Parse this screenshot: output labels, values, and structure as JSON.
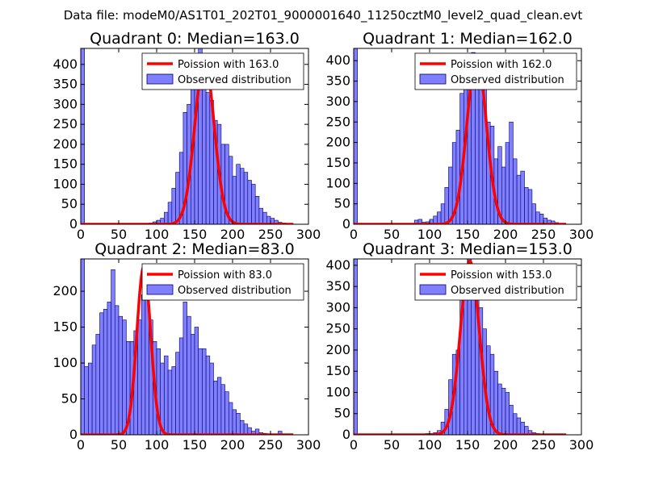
{
  "suptitle": "Data file: modeM0/AS1T01_202T01_9000001640_11250cztM0_level2_quad_clean.evt",
  "colors": {
    "bar_fill": "#7f7fff",
    "bar_edge": "#000066",
    "curve": "#ff0000",
    "axis": "#000000"
  },
  "chart_data": [
    {
      "type": "bar",
      "title": "Quadrant 0: Median=163.0",
      "xlim": [
        0,
        300
      ],
      "ylim": [
        0,
        440
      ],
      "xticks": [
        0,
        50,
        100,
        150,
        200,
        250,
        300
      ],
      "yticks": [
        0,
        50,
        100,
        150,
        200,
        250,
        300,
        350,
        400
      ],
      "legend": {
        "position": "upper-right",
        "line_label": "Poission with 163.0",
        "bar_label": "Observed distribution"
      },
      "bin_width": 5,
      "bins": [
        [
          0,
          440
        ],
        [
          85,
          2
        ],
        [
          90,
          3
        ],
        [
          95,
          6
        ],
        [
          100,
          10
        ],
        [
          105,
          15
        ],
        [
          110,
          30
        ],
        [
          115,
          55
        ],
        [
          120,
          90
        ],
        [
          125,
          130
        ],
        [
          130,
          180
        ],
        [
          135,
          280
        ],
        [
          140,
          300
        ],
        [
          145,
          420
        ],
        [
          150,
          380
        ],
        [
          155,
          440
        ],
        [
          160,
          400
        ],
        [
          165,
          330
        ],
        [
          170,
          310
        ],
        [
          175,
          260
        ],
        [
          180,
          250
        ],
        [
          185,
          200
        ],
        [
          190,
          200
        ],
        [
          195,
          170
        ],
        [
          200,
          120
        ],
        [
          205,
          150
        ],
        [
          210,
          140
        ],
        [
          215,
          130
        ],
        [
          220,
          110
        ],
        [
          225,
          100
        ],
        [
          230,
          70
        ],
        [
          235,
          40
        ],
        [
          240,
          30
        ],
        [
          245,
          20
        ],
        [
          250,
          15
        ],
        [
          255,
          10
        ],
        [
          260,
          5
        ],
        [
          265,
          3
        ],
        [
          270,
          2
        ],
        [
          275,
          1
        ]
      ],
      "poisson_mean": 163.0,
      "poisson_peak": 410
    },
    {
      "type": "bar",
      "title": "Quadrant 1: Median=162.0",
      "xlim": [
        0,
        300
      ],
      "ylim": [
        0,
        430
      ],
      "xticks": [
        0,
        50,
        100,
        150,
        200,
        250,
        300
      ],
      "yticks": [
        0,
        50,
        100,
        150,
        200,
        250,
        300,
        350,
        400
      ],
      "legend": {
        "position": "upper-right",
        "line_label": "Poission with 162.0",
        "bar_label": "Observed distribution"
      },
      "bin_width": 5,
      "bins": [
        [
          0,
          430
        ],
        [
          80,
          10
        ],
        [
          85,
          12
        ],
        [
          90,
          5
        ],
        [
          95,
          6
        ],
        [
          100,
          12
        ],
        [
          105,
          20
        ],
        [
          110,
          30
        ],
        [
          115,
          50
        ],
        [
          120,
          90
        ],
        [
          125,
          140
        ],
        [
          130,
          200
        ],
        [
          135,
          230
        ],
        [
          140,
          320
        ],
        [
          145,
          380
        ],
        [
          150,
          360
        ],
        [
          155,
          420
        ],
        [
          160,
          390
        ],
        [
          165,
          340
        ],
        [
          170,
          330
        ],
        [
          175,
          250
        ],
        [
          180,
          240
        ],
        [
          185,
          160
        ],
        [
          190,
          190
        ],
        [
          195,
          140
        ],
        [
          200,
          200
        ],
        [
          205,
          250
        ],
        [
          210,
          160
        ],
        [
          215,
          120
        ],
        [
          220,
          130
        ],
        [
          225,
          90
        ],
        [
          230,
          85
        ],
        [
          235,
          50
        ],
        [
          240,
          30
        ],
        [
          245,
          25
        ],
        [
          250,
          15
        ],
        [
          255,
          10
        ],
        [
          260,
          8
        ],
        [
          265,
          4
        ],
        [
          270,
          2
        ]
      ],
      "poisson_mean": 162.0,
      "poisson_peak": 410
    },
    {
      "type": "bar",
      "title": "Quadrant 2: Median=83.0",
      "xlim": [
        0,
        300
      ],
      "ylim": [
        0,
        245
      ],
      "xticks": [
        0,
        50,
        100,
        150,
        200,
        250,
        300
      ],
      "yticks": [
        0,
        50,
        100,
        150,
        200
      ],
      "legend": {
        "position": "upper-right",
        "line_label": "Poission with 83.0",
        "bar_label": "Observed distribution"
      },
      "bin_width": 5,
      "bins": [
        [
          0,
          245
        ],
        [
          5,
          95
        ],
        [
          10,
          100
        ],
        [
          15,
          125
        ],
        [
          20,
          140
        ],
        [
          25,
          170
        ],
        [
          30,
          175
        ],
        [
          35,
          185
        ],
        [
          40,
          230
        ],
        [
          45,
          180
        ],
        [
          50,
          165
        ],
        [
          55,
          160
        ],
        [
          60,
          130
        ],
        [
          65,
          130
        ],
        [
          70,
          145
        ],
        [
          75,
          160
        ],
        [
          80,
          195
        ],
        [
          85,
          190
        ],
        [
          90,
          160
        ],
        [
          95,
          130
        ],
        [
          100,
          120
        ],
        [
          105,
          100
        ],
        [
          110,
          110
        ],
        [
          115,
          90
        ],
        [
          120,
          95
        ],
        [
          125,
          115
        ],
        [
          130,
          135
        ],
        [
          135,
          185
        ],
        [
          140,
          165
        ],
        [
          145,
          140
        ],
        [
          150,
          150
        ],
        [
          155,
          120
        ],
        [
          160,
          120
        ],
        [
          165,
          110
        ],
        [
          170,
          100
        ],
        [
          175,
          75
        ],
        [
          180,
          80
        ],
        [
          185,
          70
        ],
        [
          190,
          60
        ],
        [
          195,
          45
        ],
        [
          200,
          35
        ],
        [
          205,
          30
        ],
        [
          210,
          20
        ],
        [
          215,
          15
        ],
        [
          220,
          10
        ],
        [
          225,
          5
        ],
        [
          230,
          8
        ],
        [
          235,
          3
        ],
        [
          240,
          2
        ],
        [
          245,
          1
        ],
        [
          250,
          1
        ],
        [
          255,
          1
        ],
        [
          260,
          5
        ],
        [
          265,
          1
        ]
      ],
      "poisson_mean": 83.0,
      "poisson_peak": 234
    },
    {
      "type": "bar",
      "title": "Quadrant 3: Median=153.0",
      "xlim": [
        0,
        300
      ],
      "ylim": [
        0,
        415
      ],
      "xticks": [
        0,
        50,
        100,
        150,
        200,
        250,
        300
      ],
      "yticks": [
        0,
        50,
        100,
        150,
        200,
        250,
        300,
        350,
        400
      ],
      "legend": {
        "position": "upper-right",
        "line_label": "Poission with 153.0",
        "bar_label": "Observed distribution"
      },
      "bin_width": 5,
      "bins": [
        [
          0,
          415
        ],
        [
          85,
          1
        ],
        [
          90,
          2
        ],
        [
          95,
          3
        ],
        [
          100,
          3
        ],
        [
          105,
          5
        ],
        [
          110,
          10
        ],
        [
          115,
          30
        ],
        [
          120,
          60
        ],
        [
          125,
          130
        ],
        [
          130,
          190
        ],
        [
          135,
          200
        ],
        [
          140,
          330
        ],
        [
          145,
          360
        ],
        [
          150,
          420
        ],
        [
          155,
          400
        ],
        [
          160,
          320
        ],
        [
          165,
          300
        ],
        [
          170,
          250
        ],
        [
          175,
          210
        ],
        [
          180,
          190
        ],
        [
          185,
          150
        ],
        [
          190,
          120
        ],
        [
          195,
          110
        ],
        [
          200,
          100
        ],
        [
          205,
          70
        ],
        [
          210,
          50
        ],
        [
          215,
          40
        ],
        [
          220,
          30
        ],
        [
          225,
          20
        ],
        [
          230,
          10
        ],
        [
          235,
          5
        ],
        [
          240,
          3
        ],
        [
          245,
          2
        ]
      ],
      "poisson_mean": 153.0,
      "poisson_peak": 410
    }
  ]
}
